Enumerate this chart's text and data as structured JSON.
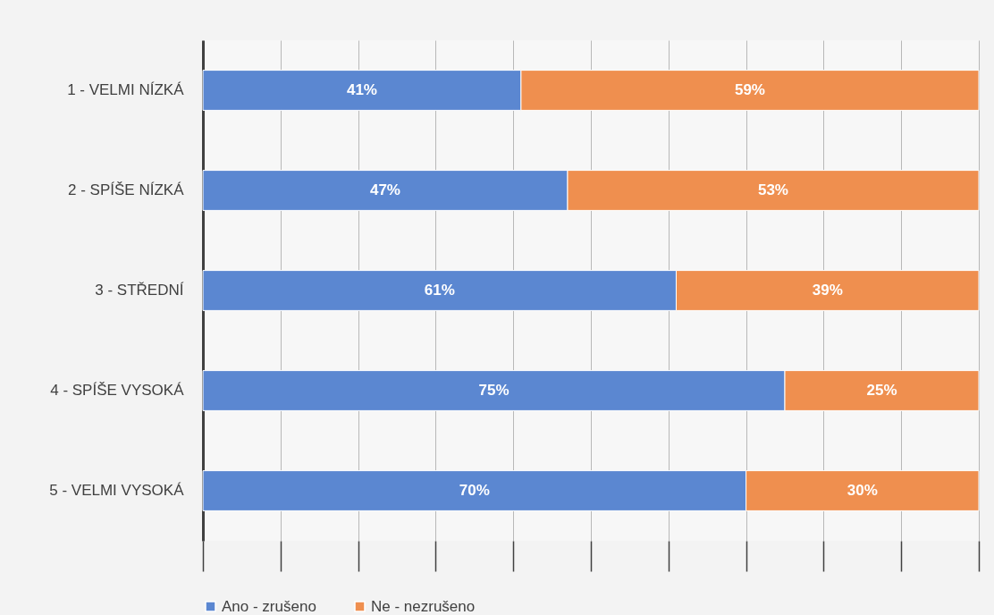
{
  "chart_data": {
    "type": "bar",
    "orientation": "horizontal",
    "stacked": true,
    "categories": [
      "1 - VELMI NÍZKÁ",
      "2 - SPÍŠE NÍZKÁ",
      "3 - STŘEDNÍ",
      "4 - SPÍŠE VYSOKÁ",
      "5 - VELMI VYSOKÁ"
    ],
    "series": [
      {
        "name": "Ano - zrušeno",
        "color": "#5b87d1",
        "values": [
          41,
          47,
          61,
          75,
          70
        ],
        "value_labels": [
          "41%",
          "47%",
          "61%",
          "75%",
          "70%"
        ]
      },
      {
        "name": "Ne - nezrušeno",
        "color": "#ef8f4f",
        "values": [
          59,
          53,
          39,
          25,
          30
        ],
        "value_labels": [
          "59%",
          "53%",
          "39%",
          "25%",
          "30%"
        ]
      }
    ],
    "xlim": [
      0,
      100
    ],
    "xticks": [
      {
        "value": 0,
        "label": null
      },
      {
        "value": 10,
        "label": null
      },
      {
        "value": 20,
        "label": null
      },
      {
        "value": 30,
        "label": null
      },
      {
        "value": 40,
        "label": null
      },
      {
        "value": 50,
        "label": null
      },
      {
        "value": 60,
        "label": null
      },
      {
        "value": 70,
        "label": null
      },
      {
        "value": 80,
        "label": null
      },
      {
        "value": 90,
        "label": null
      },
      {
        "value": 100,
        "label": null
      }
    ],
    "tick_labels": "y",
    "grid": "x",
    "legend": "bottom"
  }
}
